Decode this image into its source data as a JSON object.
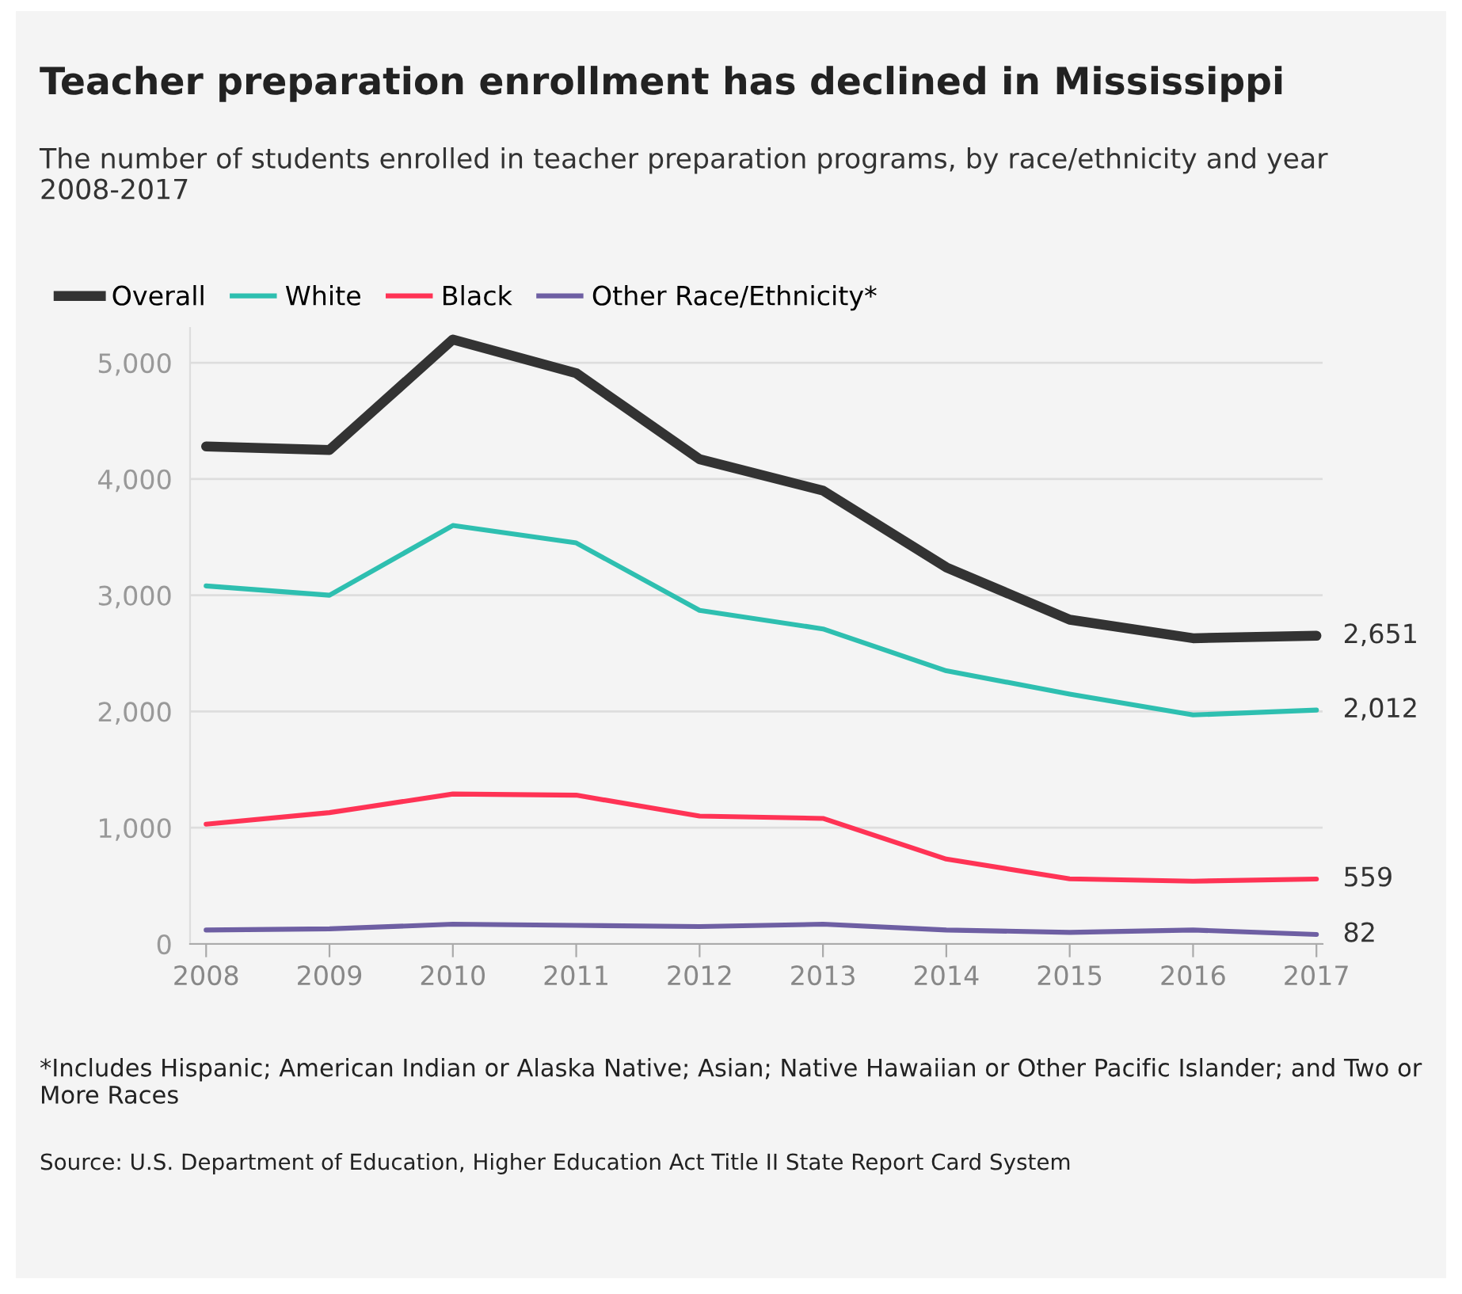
{
  "chart_data": {
    "type": "line",
    "title": "Teacher preparation enrollment has declined in Mississippi",
    "subtitle": "The number of students enrolled in teacher preparation programs, by race/ethnicity and year 2008-2017",
    "categories": [
      "2008",
      "2009",
      "2010",
      "2011",
      "2012",
      "2013",
      "2014",
      "2015",
      "2016",
      "2017"
    ],
    "series": [
      {
        "name": "Overall",
        "color": "#333333",
        "values": [
          4280,
          4250,
          5200,
          4910,
          4170,
          3900,
          3240,
          2790,
          2630,
          2651
        ],
        "value_labels": [
          null,
          null,
          null,
          null,
          null,
          null,
          null,
          null,
          null,
          "2,651"
        ]
      },
      {
        "name": "White",
        "color": "#2ebfb0",
        "values": [
          3080,
          3000,
          3600,
          3450,
          2870,
          2710,
          2350,
          2150,
          1970,
          2012
        ],
        "value_labels": [
          null,
          null,
          null,
          null,
          null,
          null,
          null,
          null,
          null,
          "2,012"
        ]
      },
      {
        "name": "Black",
        "color": "#ff3355",
        "values": [
          1030,
          1130,
          1290,
          1280,
          1100,
          1080,
          730,
          560,
          540,
          559
        ],
        "value_labels": [
          null,
          null,
          null,
          null,
          null,
          null,
          null,
          null,
          null,
          "559"
        ]
      },
      {
        "name": "Other Race/Ethnicity*",
        "color": "#6e5fa3",
        "values": [
          120,
          130,
          170,
          160,
          150,
          170,
          120,
          100,
          120,
          82
        ],
        "value_labels": [
          null,
          null,
          null,
          null,
          null,
          null,
          null,
          null,
          null,
          "82"
        ]
      }
    ],
    "ylim": [
      0,
      5300
    ],
    "yticks": [
      0,
      {
        "value": 1000,
        "label": "1,000"
      },
      {
        "value": 2000,
        "label": "2,000"
      },
      {
        "value": 3000,
        "label": "3,000"
      },
      {
        "value": 4000,
        "label": "4,000"
      },
      {
        "value": 5000,
        "label": "5,000"
      }
    ],
    "grid": "y",
    "legend": "top left",
    "marker": "none",
    "line_style": "solid",
    "annotations": [
      "*Includes Hispanic; American Indian or Alaska Native; Asian; Native Hawaiian or Other Pacific Islander; and Two or More Races",
      "Source: U.S. Department of Education, Higher Education Act Title II State Report Card System"
    ]
  }
}
